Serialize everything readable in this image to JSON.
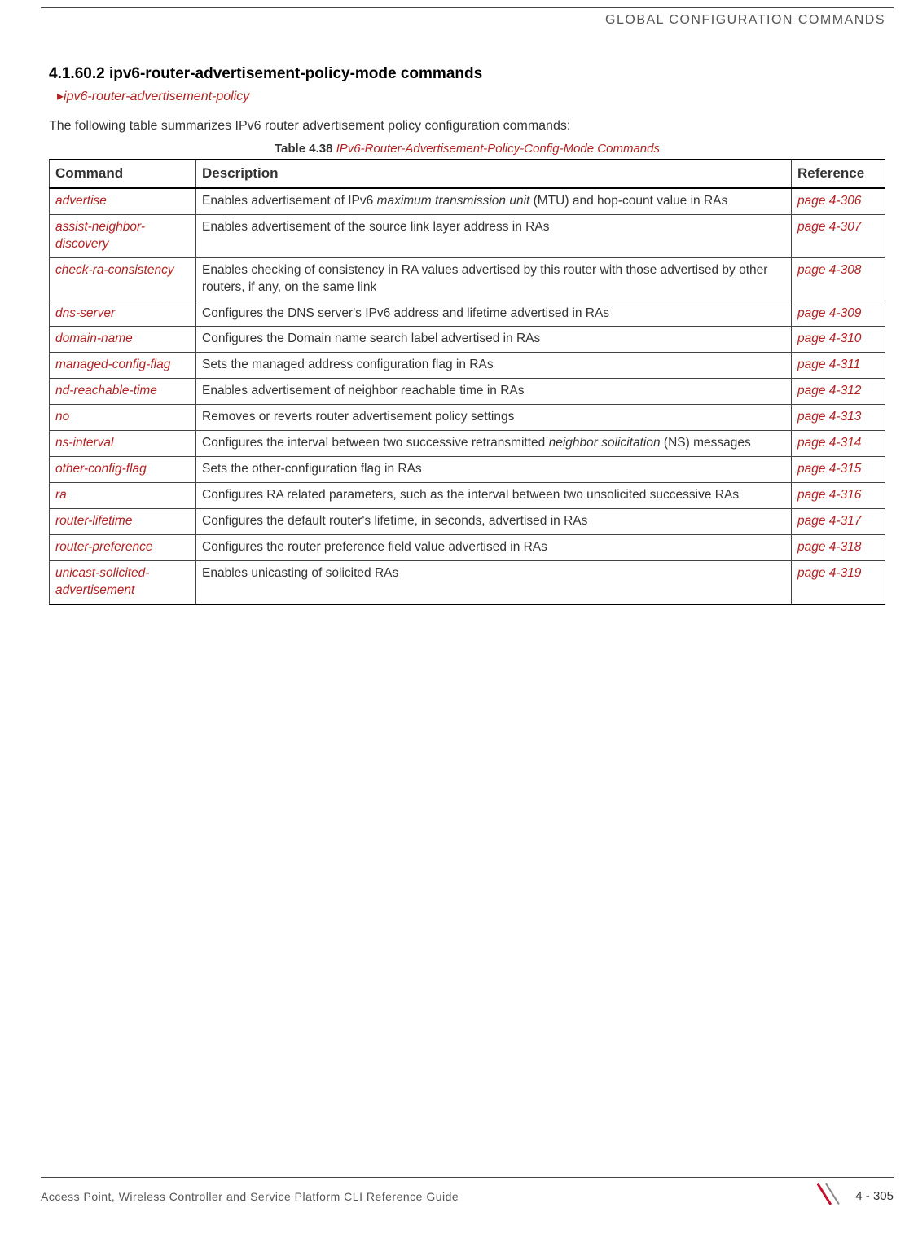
{
  "header": {
    "title": "GLOBAL CONFIGURATION COMMANDS"
  },
  "section": {
    "number": "4.1.60.2",
    "title": "ipv6-router-advertisement-policy-mode commands",
    "breadcrumb": "ipv6-router-advertisement-policy",
    "intro": "The following table summarizes IPv6 router advertisement policy configuration commands:"
  },
  "table": {
    "caption_label": "Table 4.38",
    "caption_title": "IPv6-Router-Advertisement-Policy-Config-Mode Commands",
    "columns": [
      "Command",
      "Description",
      "Reference"
    ],
    "rows": [
      {
        "command": "advertise",
        "description_parts": [
          "Enables advertisement of IPv6 ",
          {
            "it": "maximum transmission unit"
          },
          " (MTU) and hop-count value in RAs"
        ],
        "reference": "page 4-306"
      },
      {
        "command": "assist-neighbor-discovery",
        "description_parts": [
          "Enables advertisement of the source link layer address in RAs"
        ],
        "reference": "page 4-307"
      },
      {
        "command": "check-ra-consistency",
        "description_parts": [
          "Enables checking of consistency in RA values advertised by this router with those advertised by other routers, if any, on the same link"
        ],
        "reference": "page 4-308"
      },
      {
        "command": "dns-server",
        "description_parts": [
          "Configures the DNS server's IPv6 address and lifetime advertised in RAs"
        ],
        "reference": "page 4-309"
      },
      {
        "command": "domain-name",
        "description_parts": [
          "Configures the Domain name search label advertised in RAs"
        ],
        "reference": "page 4-310"
      },
      {
        "command": "managed-config-flag",
        "description_parts": [
          "Sets the managed address configuration flag in RAs"
        ],
        "reference": "page 4-311"
      },
      {
        "command": "nd-reachable-time",
        "description_parts": [
          "Enables advertisement of neighbor reachable time in RAs"
        ],
        "reference": "page 4-312"
      },
      {
        "command": "no",
        "description_parts": [
          "Removes or reverts router advertisement policy settings"
        ],
        "reference": "page 4-313"
      },
      {
        "command": "ns-interval",
        "description_parts": [
          "Configures the interval between two successive retransmitted ",
          {
            "it": "neighbor solicitation"
          },
          " (NS) messages"
        ],
        "reference": "page 4-314"
      },
      {
        "command": "other-config-flag",
        "description_parts": [
          "Sets the other-configuration flag in RAs"
        ],
        "reference": "page 4-315"
      },
      {
        "command": "ra",
        "description_parts": [
          "Configures RA related parameters, such as the interval between two unsolicited successive RAs"
        ],
        "reference": "page 4-316"
      },
      {
        "command": "router-lifetime",
        "description_parts": [
          "Configures the default router's lifetime, in seconds, advertised in RAs"
        ],
        "reference": "page 4-317"
      },
      {
        "command": "router-preference",
        "description_parts": [
          "Configures the router preference field value advertised in RAs"
        ],
        "reference": "page 4-318"
      },
      {
        "command": "unicast-solicited-advertisement",
        "description_parts": [
          "Enables unicasting of solicited RAs"
        ],
        "reference": "page 4-319"
      }
    ]
  },
  "footer": {
    "text": "Access Point, Wireless Controller and Service Platform CLI Reference Guide",
    "page": "4 - 305"
  },
  "colors": {
    "accent": "#b22222",
    "rule": "#444444",
    "brand_red": "#c8102e"
  }
}
